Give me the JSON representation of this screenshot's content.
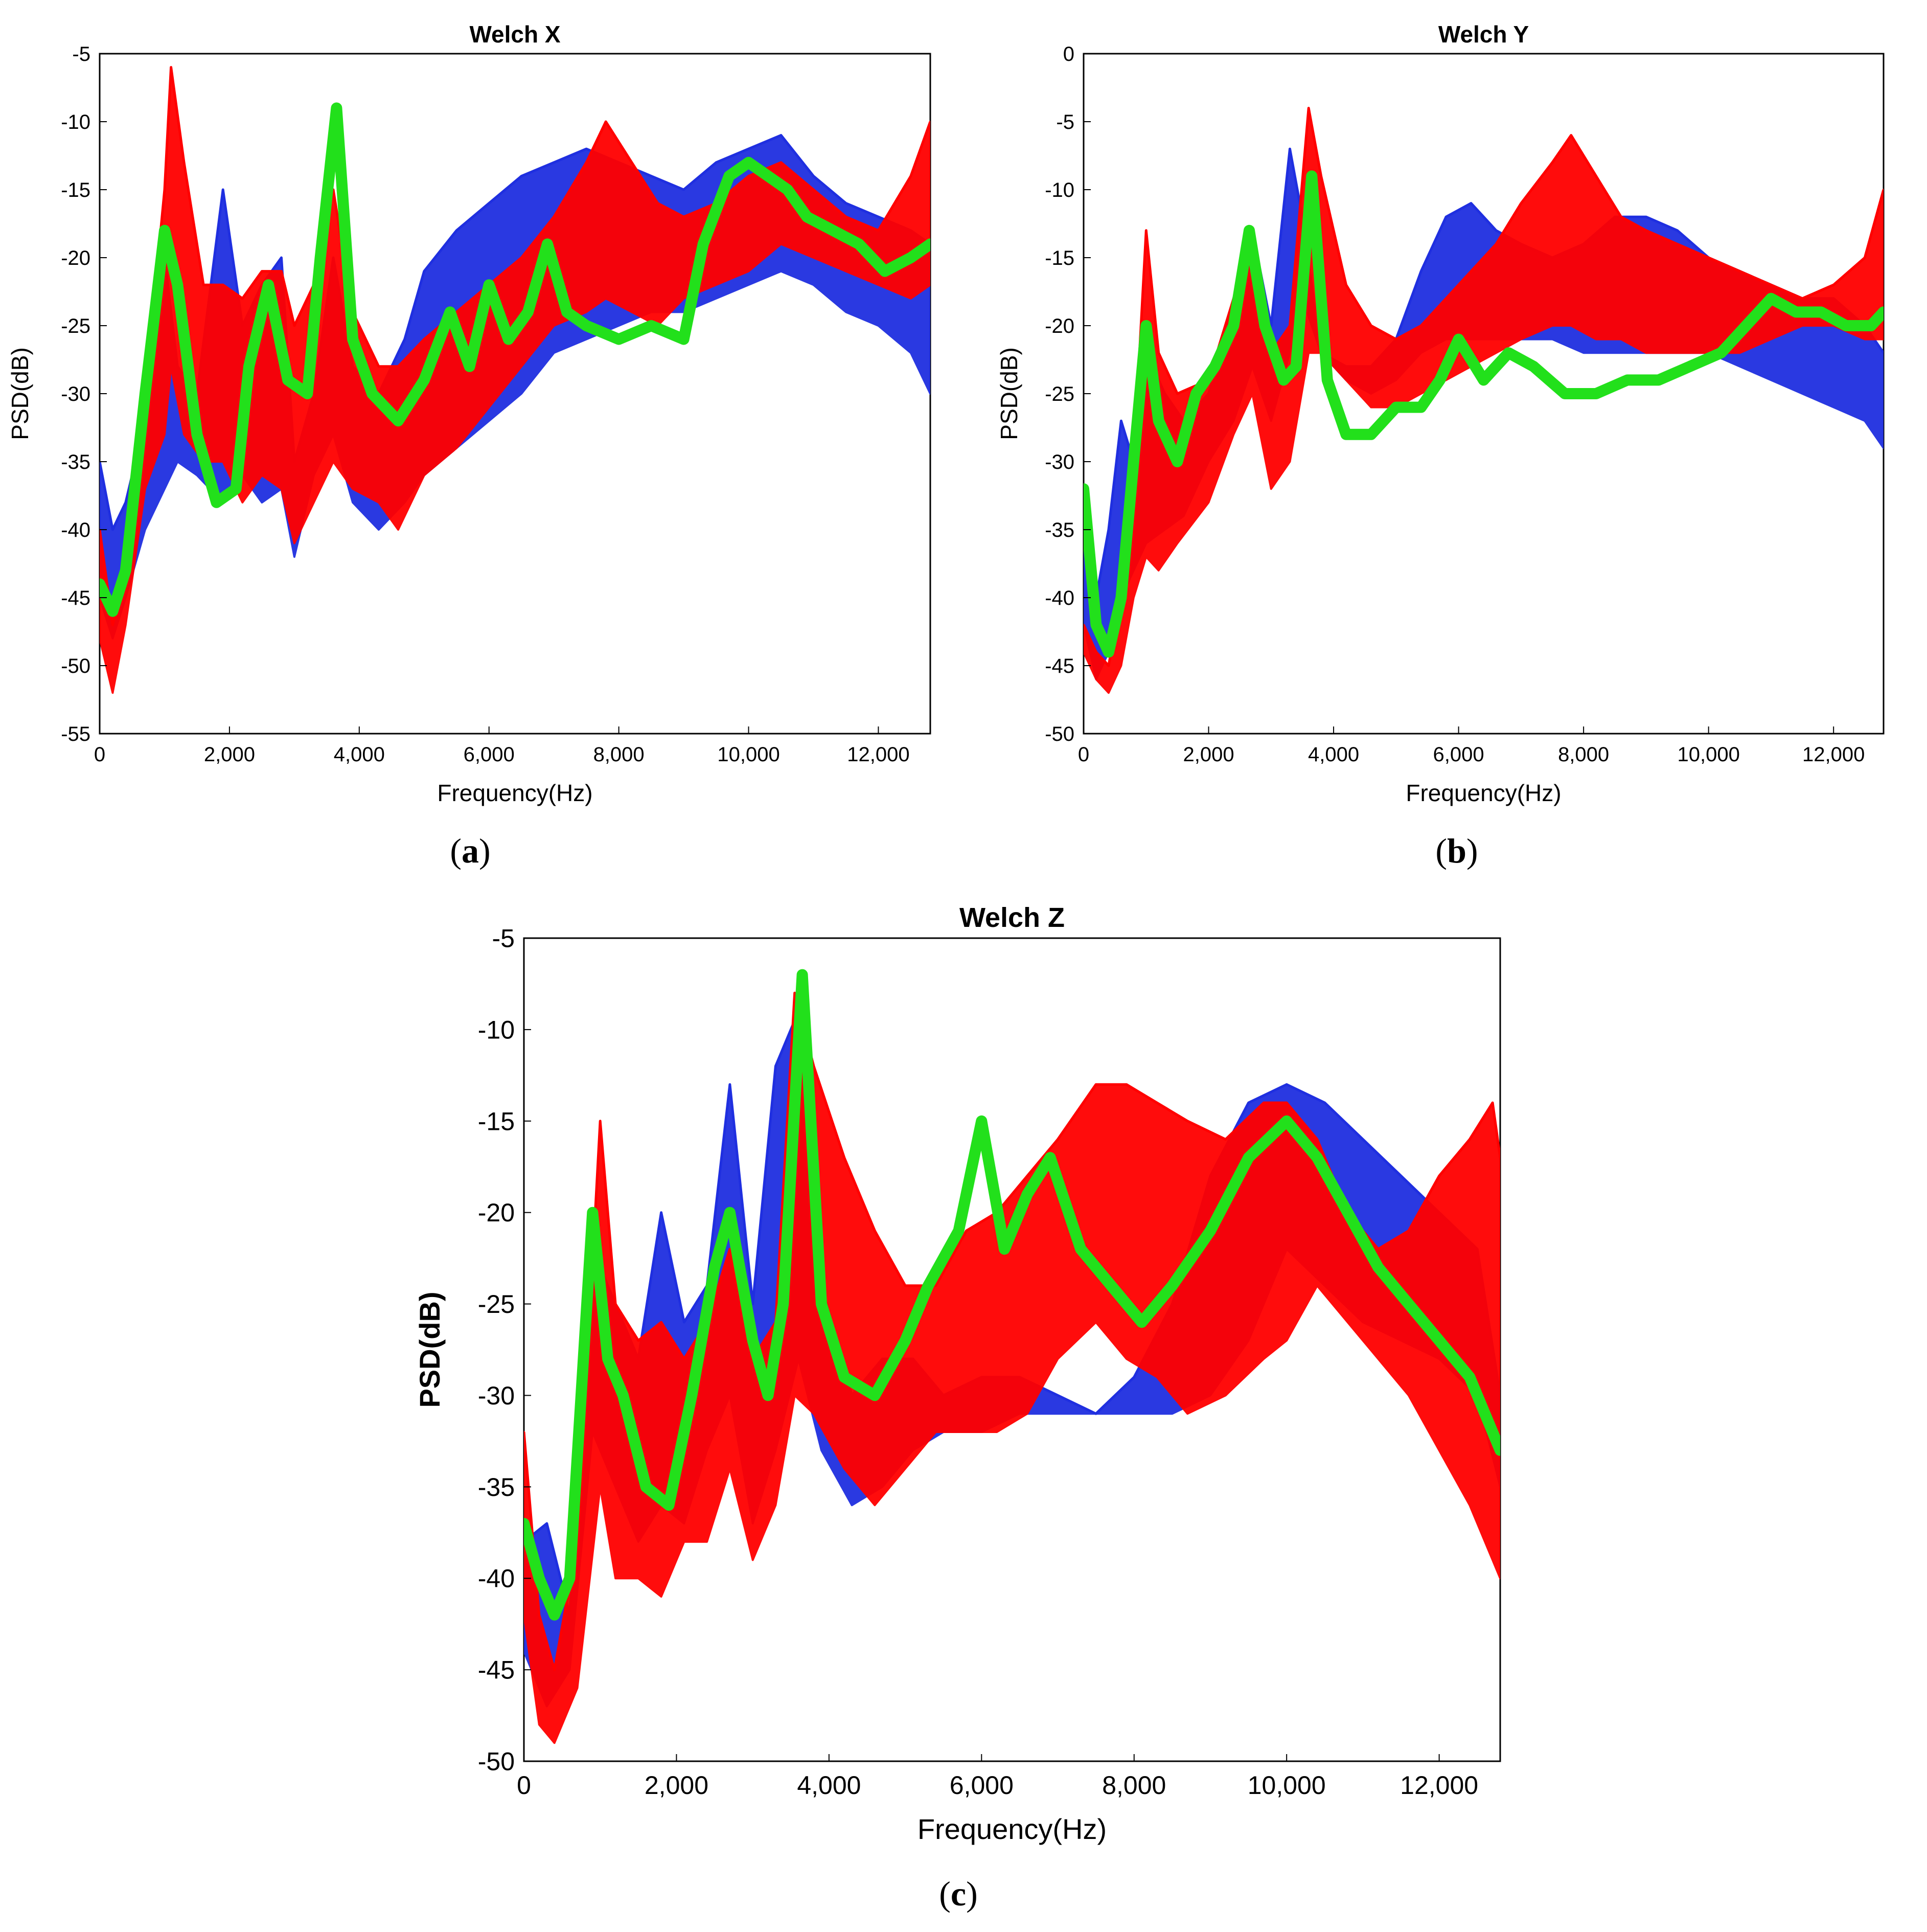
{
  "colors": {
    "series_blue": "#1f2fe0",
    "series_red": "#ff0000",
    "series_green": "#22e01b",
    "frame": "#000000",
    "text": "#000000"
  },
  "captions": [
    "a",
    "b",
    "c"
  ],
  "chart_data": [
    {
      "type": "line",
      "title": "Welch X",
      "xlabel": "Frequency(Hz)",
      "ylabel": "PSD(dB)",
      "xlim": [
        0,
        12800
      ],
      "ylim": [
        -55,
        -5
      ],
      "xticks": [
        0,
        2000,
        4000,
        6000,
        8000,
        10000,
        12000
      ],
      "xtick_labels": [
        "0",
        "2,000",
        "4,000",
        "6,000",
        "8,000",
        "10,000",
        "12,000"
      ],
      "yticks": [
        -5,
        -10,
        -15,
        -20,
        -25,
        -30,
        -35,
        -40,
        -45,
        -50,
        -55
      ],
      "ytick_labels": [
        "-5",
        "-10",
        "-15",
        "-20",
        "-25",
        "-30",
        "-35",
        "-40",
        "-45",
        "-50",
        "-55"
      ],
      "grid": false,
      "legend": "none",
      "series": [
        {
          "color": "blue",
          "band": true,
          "x": [
            0,
            200,
            400,
            700,
            1000,
            1200,
            1500,
            1900,
            2200,
            2500,
            2800,
            3000,
            3300,
            3600,
            3900,
            4300,
            4700,
            5000,
            5500,
            6000,
            6500,
            7000,
            7500,
            8000,
            8500,
            9000,
            9500,
            10000,
            10500,
            11000,
            11500,
            12000,
            12500,
            12800
          ],
          "upper": [
            -35,
            -40,
            -38,
            -32,
            -20,
            -28,
            -30,
            -15,
            -25,
            -22,
            -20,
            -35,
            -30,
            -20,
            -28,
            -30,
            -26,
            -21,
            -18,
            -16,
            -14,
            -13,
            -12,
            -13,
            -14,
            -15,
            -13,
            -12,
            -11,
            -14,
            -16,
            -17,
            -18,
            -19
          ],
          "lower": [
            -45,
            -48,
            -45,
            -40,
            -37,
            -35,
            -36,
            -38,
            -36,
            -38,
            -37,
            -42,
            -36,
            -33,
            -38,
            -40,
            -38,
            -36,
            -34,
            -32,
            -30,
            -27,
            -26,
            -25,
            -24,
            -24,
            -23,
            -22,
            -21,
            -22,
            -24,
            -25,
            -27,
            -30
          ]
        },
        {
          "color": "red",
          "band": true,
          "x": [
            0,
            200,
            400,
            700,
            1000,
            1100,
            1300,
            1600,
            1900,
            2200,
            2500,
            2800,
            3000,
            3300,
            3600,
            3900,
            4300,
            4600,
            5000,
            5500,
            6000,
            6500,
            7000,
            7500,
            7800,
            8200,
            8600,
            9000,
            9500,
            10000,
            10500,
            11000,
            11500,
            12000,
            12500,
            12800
          ],
          "upper": [
            -40,
            -47,
            -43,
            -30,
            -15,
            -6,
            -13,
            -22,
            -22,
            -23,
            -21,
            -21,
            -25,
            -22,
            -15,
            -24,
            -28,
            -28,
            -26,
            -24,
            -22,
            -20,
            -17,
            -13,
            -10,
            -13,
            -16,
            -17,
            -16,
            -14,
            -13,
            -15,
            -17,
            -18,
            -14,
            -10
          ],
          "lower": [
            -48,
            -52,
            -47,
            -37,
            -33,
            -28,
            -33,
            -35,
            -35,
            -38,
            -36,
            -37,
            -41,
            -38,
            -35,
            -37,
            -38,
            -40,
            -36,
            -34,
            -31,
            -28,
            -25,
            -24,
            -23,
            -24,
            -25,
            -23,
            -22,
            -21,
            -19,
            -20,
            -21,
            -22,
            -23,
            -22
          ]
        },
        {
          "color": "green",
          "band": false,
          "x": [
            0,
            200,
            400,
            700,
            1000,
            1200,
            1500,
            1800,
            2100,
            2300,
            2600,
            2900,
            3200,
            3400,
            3650,
            3900,
            4200,
            4600,
            5000,
            5400,
            5700,
            6000,
            6300,
            6600,
            6900,
            7200,
            7500,
            8000,
            8500,
            9000,
            9300,
            9700,
            10000,
            10300,
            10600,
            10900,
            11300,
            11700,
            12100,
            12500,
            12800
          ],
          "y": [
            -44,
            -46,
            -43,
            -30,
            -18,
            -22,
            -33,
            -38,
            -37,
            -28,
            -22,
            -29,
            -30,
            -20,
            -9,
            -26,
            -30,
            -32,
            -29,
            -24,
            -28,
            -22,
            -26,
            -24,
            -19,
            -24,
            -25,
            -26,
            -25,
            -26,
            -19,
            -14,
            -13,
            -14,
            -15,
            -17,
            -18,
            -19,
            -21,
            -20,
            -19
          ]
        }
      ]
    },
    {
      "type": "line",
      "title": "Welch Y",
      "xlabel": "Frequency(Hz)",
      "ylabel": "PSD(dB)",
      "xlim": [
        0,
        12800
      ],
      "ylim": [
        -50,
        0
      ],
      "xticks": [
        0,
        2000,
        4000,
        6000,
        8000,
        10000,
        12000
      ],
      "xtick_labels": [
        "0",
        "2,000",
        "4,000",
        "6,000",
        "8,000",
        "10,000",
        "12,000"
      ],
      "yticks": [
        0,
        -5,
        -10,
        -15,
        -20,
        -25,
        -30,
        -35,
        -40,
        -45,
        -50
      ],
      "ytick_labels": [
        "0",
        "-5",
        "-10",
        "-15",
        "-20",
        "-25",
        "-30",
        "-35",
        "-40",
        "-45",
        "-50"
      ],
      "grid": false,
      "legend": "none",
      "series": [
        {
          "color": "blue",
          "band": true,
          "x": [
            0,
            200,
            400,
            600,
            800,
            1000,
            1300,
            1600,
            2000,
            2400,
            2700,
            3000,
            3300,
            3500,
            3800,
            4200,
            4600,
            5000,
            5400,
            5800,
            6200,
            6600,
            7000,
            7500,
            8000,
            8500,
            9000,
            9500,
            10000,
            10500,
            11000,
            11500,
            12000,
            12500,
            12800
          ],
          "upper": [
            -33,
            -40,
            -35,
            -27,
            -30,
            -22,
            -25,
            -27,
            -25,
            -18,
            -13,
            -20,
            -7,
            -12,
            -22,
            -23,
            -23,
            -21,
            -16,
            -12,
            -11,
            -13,
            -14,
            -15,
            -14,
            -12,
            -12,
            -13,
            -15,
            -16,
            -17,
            -18,
            -18,
            -20,
            -22
          ],
          "lower": [
            -42,
            -46,
            -44,
            -40,
            -38,
            -36,
            -35,
            -34,
            -30,
            -27,
            -23,
            -27,
            -22,
            -18,
            -22,
            -24,
            -25,
            -24,
            -22,
            -21,
            -21,
            -21,
            -21,
            -21,
            -22,
            -22,
            -22,
            -22,
            -22,
            -23,
            -24,
            -25,
            -26,
            -27,
            -29
          ]
        },
        {
          "color": "red",
          "band": true,
          "x": [
            0,
            200,
            400,
            600,
            800,
            1000,
            1200,
            1500,
            2000,
            2400,
            2700,
            3000,
            3300,
            3600,
            3800,
            4200,
            4600,
            5000,
            5400,
            5800,
            6200,
            6600,
            7000,
            7500,
            7800,
            8200,
            8600,
            9000,
            9500,
            10000,
            10500,
            11000,
            11500,
            12000,
            12500,
            12800
          ],
          "upper": [
            -42,
            -44,
            -45,
            -40,
            -30,
            -13,
            -22,
            -25,
            -24,
            -18,
            -15,
            -22,
            -20,
            -4,
            -9,
            -17,
            -20,
            -21,
            -20,
            -18,
            -16,
            -14,
            -11,
            -8,
            -6,
            -9,
            -12,
            -13,
            -14,
            -15,
            -16,
            -17,
            -18,
            -17,
            -15,
            -10
          ],
          "lower": [
            -44,
            -46,
            -47,
            -45,
            -40,
            -37,
            -38,
            -36,
            -33,
            -28,
            -25,
            -32,
            -30,
            -22,
            -22,
            -24,
            -26,
            -26,
            -25,
            -24,
            -23,
            -22,
            -21,
            -20,
            -20,
            -21,
            -21,
            -22,
            -22,
            -22,
            -22,
            -21,
            -20,
            -20,
            -21,
            -21
          ]
        },
        {
          "color": "green",
          "band": false,
          "x": [
            0,
            200,
            400,
            600,
            800,
            1000,
            1200,
            1500,
            1800,
            2100,
            2400,
            2650,
            2900,
            3200,
            3400,
            3650,
            3900,
            4200,
            4600,
            5000,
            5400,
            5700,
            6000,
            6400,
            6800,
            7200,
            7700,
            8200,
            8700,
            9200,
            9700,
            10200,
            10600,
            11000,
            11400,
            11800,
            12200,
            12600,
            12800
          ],
          "y": [
            -32,
            -42,
            -44,
            -40,
            -30,
            -20,
            -27,
            -30,
            -25,
            -23,
            -20,
            -13,
            -20,
            -24,
            -23,
            -9,
            -24,
            -28,
            -28,
            -26,
            -26,
            -24,
            -21,
            -24,
            -22,
            -23,
            -25,
            -25,
            -24,
            -24,
            -23,
            -22,
            -20,
            -18,
            -19,
            -19,
            -20,
            -20,
            -19
          ]
        }
      ]
    },
    {
      "type": "line",
      "title": "Welch Z",
      "xlabel": "Frequency(Hz)",
      "ylabel": "PSD(dB)",
      "xlim": [
        0,
        12800
      ],
      "ylim": [
        -50,
        -5
      ],
      "xticks": [
        0,
        2000,
        4000,
        6000,
        8000,
        10000,
        12000
      ],
      "xtick_labels": [
        "0",
        "2,000",
        "4,000",
        "6,000",
        "8,000",
        "10,000",
        "12,000"
      ],
      "yticks": [
        -5,
        -10,
        -15,
        -20,
        -25,
        -30,
        -35,
        -40,
        -45,
        -50
      ],
      "ytick_labels": [
        "-5",
        "-10",
        "-15",
        "-20",
        "-25",
        "-30",
        "-35",
        "-40",
        "-45",
        "-50"
      ],
      "grid": false,
      "legend": "none",
      "series": [
        {
          "color": "blue",
          "band": true,
          "x": [
            0,
            300,
            600,
            900,
            1200,
            1500,
            1800,
            2100,
            2400,
            2700,
            3000,
            3300,
            3600,
            3900,
            4300,
            4700,
            5100,
            5500,
            6000,
            6500,
            7000,
            7500,
            8000,
            8500,
            9000,
            9500,
            10000,
            10500,
            11000,
            11500,
            12000,
            12500,
            12800
          ],
          "upper": [
            -38,
            -37,
            -42,
            -22,
            -25,
            -28,
            -20,
            -26,
            -24,
            -13,
            -25,
            -12,
            -9,
            -24,
            -30,
            -28,
            -28,
            -30,
            -29,
            -29,
            -30,
            -31,
            -29,
            -25,
            -18,
            -14,
            -13,
            -14,
            -16,
            -18,
            -20,
            -22,
            -30
          ],
          "lower": [
            -44,
            -47,
            -45,
            -32,
            -35,
            -38,
            -36,
            -37,
            -33,
            -30,
            -37,
            -33,
            -28,
            -33,
            -36,
            -35,
            -33,
            -32,
            -32,
            -31,
            -31,
            -31,
            -31,
            -31,
            -30,
            -27,
            -22,
            -24,
            -26,
            -27,
            -28,
            -30,
            -35
          ]
        },
        {
          "color": "red",
          "band": true,
          "x": [
            0,
            200,
            400,
            700,
            1000,
            1200,
            1500,
            1800,
            2100,
            2400,
            2700,
            3000,
            3300,
            3550,
            3800,
            4200,
            4600,
            5000,
            5400,
            5800,
            6200,
            6600,
            7000,
            7500,
            7900,
            8300,
            8700,
            9200,
            9700,
            10000,
            10400,
            10800,
            11200,
            11600,
            12000,
            12400,
            12700,
            12800
          ],
          "upper": [
            -32,
            -42,
            -45,
            -38,
            -15,
            -25,
            -27,
            -26,
            -28,
            -26,
            -22,
            -28,
            -26,
            -8,
            -12,
            -17,
            -21,
            -24,
            -24,
            -21,
            -20,
            -18,
            -16,
            -13,
            -13,
            -14,
            -15,
            -16,
            -14,
            -14,
            -16,
            -20,
            -22,
            -21,
            -18,
            -16,
            -14,
            -17
          ],
          "lower": [
            -42,
            -48,
            -49,
            -46,
            -35,
            -40,
            -40,
            -41,
            -38,
            -38,
            -34,
            -39,
            -36,
            -30,
            -31,
            -34,
            -36,
            -34,
            -32,
            -32,
            -32,
            -31,
            -28,
            -26,
            -28,
            -29,
            -31,
            -30,
            -28,
            -27,
            -24,
            -26,
            -28,
            -30,
            -33,
            -36,
            -39,
            -40
          ]
        },
        {
          "color": "green",
          "band": false,
          "x": [
            0,
            200,
            400,
            600,
            900,
            1100,
            1300,
            1600,
            1900,
            2200,
            2500,
            2700,
            3000,
            3200,
            3400,
            3650,
            3900,
            4200,
            4600,
            5000,
            5300,
            5700,
            6000,
            6300,
            6600,
            6900,
            7300,
            7700,
            8100,
            8500,
            9000,
            9500,
            10000,
            10400,
            10800,
            11200,
            11600,
            12000,
            12400,
            12800
          ],
          "y": [
            -37,
            -40,
            -42,
            -40,
            -20,
            -28,
            -30,
            -35,
            -36,
            -30,
            -23,
            -20,
            -27,
            -30,
            -25,
            -7,
            -25,
            -29,
            -30,
            -27,
            -24,
            -21,
            -15,
            -22,
            -19,
            -17,
            -22,
            -24,
            -26,
            -24,
            -21,
            -17,
            -15,
            -17,
            -20,
            -23,
            -25,
            -27,
            -29,
            -33
          ]
        }
      ]
    }
  ]
}
